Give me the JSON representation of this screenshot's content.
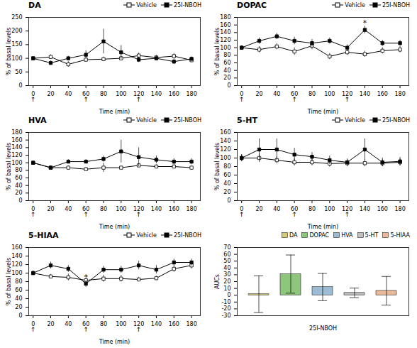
{
  "chart_data": [
    {
      "type": "line",
      "title": "DA",
      "xlabel": "Time (min)",
      "ylabel": "% of basal levels",
      "x": [
        0,
        20,
        40,
        60,
        80,
        100,
        120,
        140,
        160,
        180
      ],
      "xlim": [
        -5,
        190
      ],
      "xticks": [
        0,
        20,
        40,
        60,
        80,
        100,
        120,
        140,
        160,
        180
      ],
      "ylim": [
        0,
        250
      ],
      "yticks": [
        0,
        50,
        100,
        150,
        200,
        250
      ],
      "series": [
        {
          "name": "Vehicle",
          "color": "#000000",
          "marker": "square_open",
          "values": [
            100,
            105,
            78,
            95,
            97,
            100,
            110,
            103,
            108,
            93
          ],
          "errors": [
            5,
            8,
            10,
            8,
            8,
            8,
            10,
            8,
            10,
            8
          ]
        },
        {
          "name": "25I-NBOH",
          "color": "#000000",
          "marker": "square",
          "values": [
            100,
            83,
            100,
            113,
            162,
            122,
            95,
            100,
            88,
            98
          ],
          "errors": [
            5,
            8,
            8,
            15,
            45,
            25,
            10,
            8,
            10,
            8
          ]
        }
      ],
      "annotations": [
        {
          "text": "↑",
          "x": 0
        },
        {
          "text": "↑",
          "x": 60
        },
        {
          "text": "↑",
          "x": 120
        }
      ],
      "legend": "upper right",
      "grid": false
    },
    {
      "type": "line",
      "title": "DOPAC",
      "xlabel": "Time (min)",
      "ylabel": "% of basal levels",
      "x": [
        0,
        20,
        40,
        60,
        80,
        100,
        120,
        140,
        160,
        180
      ],
      "xlim": [
        -5,
        190
      ],
      "xticks": [
        0,
        20,
        40,
        60,
        80,
        100,
        120,
        140,
        160,
        180
      ],
      "ylim": [
        0,
        180
      ],
      "yticks": [
        0,
        20,
        40,
        60,
        80,
        100,
        120,
        140,
        160,
        180
      ],
      "series": [
        {
          "name": "Vehicle",
          "color": "#000000",
          "marker": "square_open",
          "values": [
            100,
            95,
            103,
            90,
            105,
            77,
            88,
            83,
            92,
            95
          ],
          "errors": [
            5,
            8,
            8,
            10,
            10,
            8,
            8,
            8,
            8,
            8
          ]
        },
        {
          "name": "25I-NBOH",
          "color": "#000000",
          "marker": "square",
          "values": [
            100,
            118,
            130,
            118,
            112,
            118,
            100,
            147,
            112,
            112
          ],
          "errors": [
            5,
            8,
            8,
            10,
            10,
            8,
            8,
            10,
            8,
            8
          ]
        }
      ],
      "annotations": [
        {
          "text": "*",
          "x": 140,
          "series": "25I-NBOH"
        },
        {
          "text": "↑",
          "x": 0
        },
        {
          "text": "↑",
          "x": 60
        },
        {
          "text": "↑",
          "x": 120
        }
      ],
      "legend": "upper right",
      "grid": false
    },
    {
      "type": "line",
      "title": "HVA",
      "xlabel": "Time (min)",
      "ylabel": "% of basal levels",
      "x": [
        0,
        20,
        40,
        60,
        80,
        100,
        120,
        140,
        160,
        180
      ],
      "xlim": [
        -5,
        190
      ],
      "xticks": [
        0,
        20,
        40,
        60,
        80,
        100,
        120,
        140,
        160,
        180
      ],
      "ylim": [
        0,
        180
      ],
      "yticks": [
        0,
        20,
        40,
        60,
        80,
        100,
        120,
        140,
        160,
        180
      ],
      "series": [
        {
          "name": "Vehicle",
          "color": "#000000",
          "marker": "square_open",
          "values": [
            100,
            87,
            87,
            83,
            87,
            87,
            93,
            90,
            90,
            87
          ],
          "errors": [
            5,
            5,
            5,
            5,
            12,
            5,
            5,
            5,
            5,
            5
          ]
        },
        {
          "name": "25I-NBOH",
          "color": "#000000",
          "marker": "square",
          "values": [
            100,
            87,
            103,
            103,
            110,
            130,
            115,
            108,
            103,
            103
          ],
          "errors": [
            5,
            5,
            5,
            5,
            8,
            30,
            25,
            10,
            8,
            8
          ]
        }
      ],
      "annotations": [
        {
          "text": "↑",
          "x": 0
        },
        {
          "text": "↑",
          "x": 60
        },
        {
          "text": "↑",
          "x": 120
        }
      ],
      "legend": "upper right",
      "grid": false
    },
    {
      "type": "line",
      "title": "5-HT",
      "xlabel": "Time (min)",
      "ylabel": "% of basal levels",
      "x": [
        0,
        20,
        40,
        60,
        80,
        100,
        120,
        140,
        160,
        180
      ],
      "xlim": [
        -5,
        190
      ],
      "xticks": [
        0,
        20,
        40,
        60,
        80,
        100,
        120,
        140,
        160,
        180
      ],
      "ylim": [
        0,
        160
      ],
      "yticks": [
        0,
        20,
        40,
        60,
        80,
        100,
        120,
        140,
        160
      ],
      "series": [
        {
          "name": "Vehicle",
          "color": "#000000",
          "marker": "square_open",
          "values": [
            100,
            100,
            95,
            90,
            90,
            87,
            88,
            88,
            88,
            90
          ],
          "errors": [
            8,
            10,
            8,
            8,
            8,
            8,
            8,
            8,
            8,
            8
          ]
        },
        {
          "name": "25I-NBOH",
          "color": "#000000",
          "marker": "square",
          "values": [
            100,
            120,
            120,
            108,
            103,
            95,
            90,
            120,
            90,
            92
          ],
          "errors": [
            8,
            25,
            25,
            15,
            10,
            10,
            8,
            25,
            10,
            10
          ]
        }
      ],
      "annotations": [
        {
          "text": "↑",
          "x": 0
        },
        {
          "text": "↑",
          "x": 60
        },
        {
          "text": "↑",
          "x": 120
        }
      ],
      "legend": "upper right",
      "grid": false
    },
    {
      "type": "line",
      "title": "5-HIAA",
      "xlabel": "Time (min)",
      "ylabel": "% of basal levels",
      "x": [
        0,
        20,
        40,
        60,
        80,
        100,
        120,
        140,
        160,
        180
      ],
      "xlim": [
        -5,
        190
      ],
      "xticks": [
        0,
        20,
        40,
        60,
        80,
        100,
        120,
        140,
        160,
        180
      ],
      "ylim": [
        0,
        160
      ],
      "yticks": [
        0,
        20,
        40,
        60,
        80,
        100,
        120,
        140,
        160
      ],
      "series": [
        {
          "name": "Vehicle",
          "color": "#000000",
          "marker": "square_open",
          "values": [
            100,
            92,
            90,
            83,
            87,
            87,
            85,
            88,
            110,
            118
          ],
          "errors": [
            5,
            5,
            8,
            5,
            8,
            8,
            5,
            5,
            8,
            8
          ]
        },
        {
          "name": "25I-NBOH",
          "color": "#000000",
          "marker": "square",
          "values": [
            100,
            118,
            110,
            75,
            108,
            108,
            118,
            108,
            125,
            125
          ],
          "errors": [
            5,
            8,
            8,
            8,
            8,
            8,
            10,
            10,
            8,
            8
          ]
        }
      ],
      "annotations": [
        {
          "text": "*",
          "x": 60,
          "series": "25I-NBOH"
        },
        {
          "text": "↑",
          "x": 0
        },
        {
          "text": "↑",
          "x": 60
        },
        {
          "text": "↑",
          "x": 120
        }
      ],
      "legend": "upper right",
      "grid": false
    },
    {
      "type": "bar",
      "xlabel": "25I-NBOH",
      "ylabel": "AUCs",
      "categories": [
        "DA",
        "DOPAC",
        "HVA",
        "5-HT",
        "5-HIAA"
      ],
      "values": [
        1.5,
        31,
        12,
        3.5,
        6.5
      ],
      "errors": [
        27,
        28,
        20,
        7,
        21
      ],
      "colors": [
        "#d4c97a",
        "#8dc67c",
        "#9bbcd4",
        "#c0bfbf",
        "#e8b99a"
      ],
      "ylim": [
        -30,
        70
      ],
      "yticks": [
        -30,
        -20,
        -10,
        0,
        10,
        20,
        30,
        40,
        50,
        60,
        70
      ],
      "tick_labels": "y",
      "legend": "upper right",
      "grid": false
    }
  ]
}
